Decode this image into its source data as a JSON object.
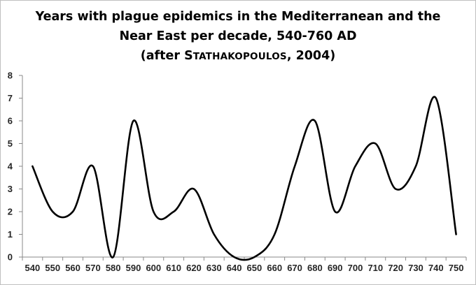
{
  "chart_data": {
    "type": "line",
    "title_lines": [
      "Years with plague epidemics in the Mediterranean and the",
      "Near East per decade, 540-760 AD"
    ],
    "subtitle": {
      "open": "(after ",
      "author_initial": "S",
      "author_rest": "TATHAKOPOULOS",
      "close": ", 2004)"
    },
    "x": [
      540,
      550,
      560,
      570,
      580,
      590,
      600,
      610,
      620,
      630,
      640,
      650,
      660,
      670,
      680,
      690,
      700,
      710,
      720,
      730,
      740,
      750
    ],
    "values": [
      4,
      2,
      2,
      4,
      0,
      6,
      2,
      2,
      3,
      1,
      0,
      0,
      1,
      4,
      6,
      2,
      4,
      5,
      3,
      4,
      7,
      1
    ],
    "ylim": [
      0,
      8
    ],
    "yticks": [
      0,
      1,
      2,
      3,
      4,
      5,
      6,
      7,
      8
    ],
    "xlabel": "",
    "ylabel": "",
    "grid": false,
    "line_color": "#000000",
    "smooth": true
  }
}
